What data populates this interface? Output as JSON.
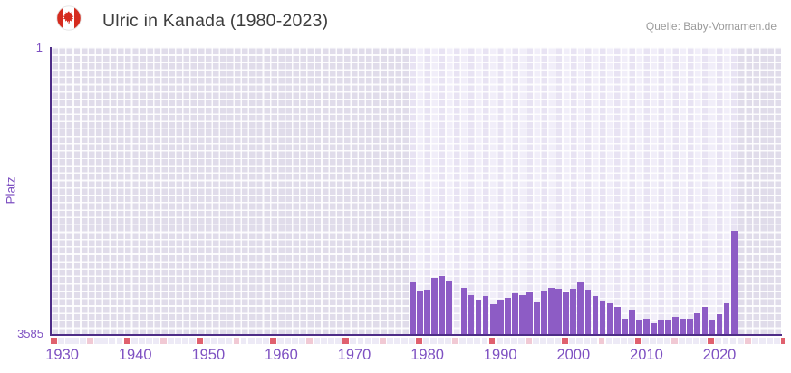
{
  "header": {
    "title": "Ulric in Kanada (1980-2023)",
    "flag_icon": "canada-flag-icon",
    "source": "Quelle: Baby-Vornamen.de"
  },
  "y_axis": {
    "label": "Platz",
    "top_tick": "1",
    "bottom_tick": "3585"
  },
  "colors": {
    "bar": "#8d5cc5",
    "axis_line": "#4e2d87",
    "axis_text": "#7e51c2",
    "plot_background": "#e0dcea",
    "highlight_band": "#f1eef9",
    "strip_cell": "#edeaf6",
    "strip_major": "#e0606e",
    "strip_minor": "#f1c9d4",
    "title_text": "#3d3d3d",
    "source_text": "#9b9b9b",
    "flag_red": "#d52b1e"
  },
  "chart_data": {
    "type": "bar",
    "title": "Ulric in Kanada (1980-2023)",
    "xlabel": "",
    "ylabel": "Platz",
    "y_axis_inverted": true,
    "ylim": [
      1,
      3585
    ],
    "x_ticks": [
      1930,
      1940,
      1950,
      1960,
      1970,
      1980,
      1990,
      2000,
      2010,
      2020
    ],
    "tick_marks": {
      "start_year": 1928,
      "minor_every": 5,
      "major_every": 10
    },
    "highlight_band_years": [
      1978,
      2022
    ],
    "grid": true,
    "legend": false,
    "years": [
      1978,
      1979,
      1980,
      1981,
      1982,
      1983,
      1984,
      1985,
      1986,
      1987,
      1988,
      1989,
      1990,
      1991,
      1992,
      1993,
      1994,
      1995,
      1996,
      1997,
      1998,
      1999,
      2000,
      2001,
      2002,
      2003,
      2004,
      2005,
      2006,
      2007,
      2008,
      2009,
      2010,
      2011,
      2012,
      2013,
      2014,
      2015,
      2016,
      2017,
      2018,
      2019,
      2020,
      2021,
      2022
    ],
    "values": [
      2930,
      3030,
      3020,
      2875,
      2850,
      2910,
      null,
      3000,
      3090,
      3150,
      3105,
      3200,
      3140,
      3125,
      3065,
      3085,
      3060,
      3180,
      3030,
      2995,
      3010,
      3055,
      3005,
      2935,
      3025,
      3100,
      3155,
      3190,
      3230,
      3380,
      3265,
      3400,
      3380,
      3435,
      3405,
      3400,
      3365,
      3380,
      3385,
      3310,
      3230,
      3395,
      3330,
      3190,
      2290
    ]
  }
}
